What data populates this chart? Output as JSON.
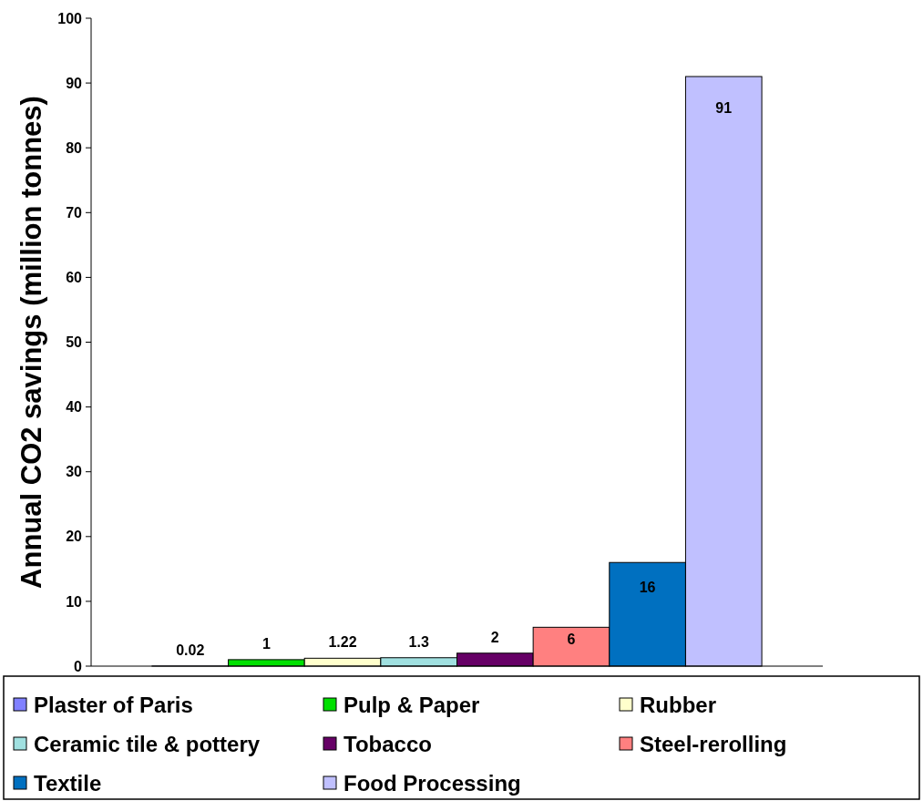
{
  "chart_data": {
    "type": "bar",
    "ylabel": "Annual CO2 savings (million tonnes)",
    "categories": [
      null
    ],
    "series": [
      {
        "name": "Plaster of Paris",
        "color": "#8080ff",
        "values": [
          0.02
        ]
      },
      {
        "name": "Pulp & Paper",
        "color": "#00e000",
        "values": [
          1
        ]
      },
      {
        "name": "Rubber",
        "color": "#ffffcc",
        "values": [
          1.22
        ]
      },
      {
        "name": "Ceramic tile & pottery",
        "color": "#a0e0e0",
        "values": [
          1.3
        ]
      },
      {
        "name": "Tobacco",
        "color": "#660066",
        "values": [
          2
        ]
      },
      {
        "name": "Steel-rerolling",
        "color": "#ff8080",
        "values": [
          6
        ]
      },
      {
        "name": "Textile",
        "color": "#0070c0",
        "values": [
          16
        ]
      },
      {
        "name": "Food Processing",
        "color": "#c0c0ff",
        "values": [
          91
        ]
      }
    ],
    "ylim": [
      0,
      100
    ],
    "yticks": [
      0,
      10,
      20,
      30,
      40,
      50,
      60,
      70,
      80,
      90,
      100
    ],
    "data_labels": true,
    "legend": "bottom",
    "grid": false
  }
}
